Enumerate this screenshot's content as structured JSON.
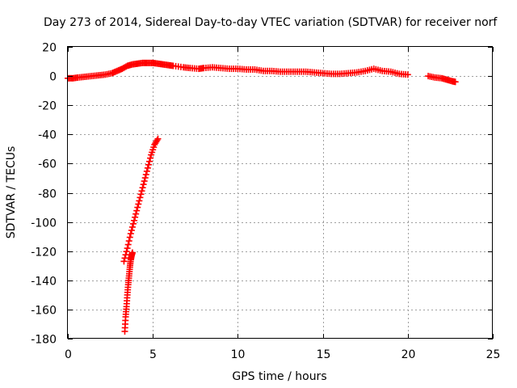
{
  "chart_data": {
    "type": "scatter",
    "title": "Day 273 of 2014, Sidereal Day-to-day VTEC variation (SDTVAR) for receiver norf",
    "xlabel": "GPS time / hours",
    "ylabel": "SDTVAR / TECUs",
    "xlim": [
      0,
      25
    ],
    "ylim": [
      -180,
      20
    ],
    "xticks": [
      "0",
      "5",
      "10",
      "15",
      "20",
      "25"
    ],
    "yticks": [
      "-180",
      "-160",
      "-140",
      "-120",
      "-100",
      "-80",
      "-60",
      "-40",
      "-20",
      "0",
      "20"
    ],
    "grid": true,
    "marker": "plus",
    "color": "#ff0000",
    "series": [
      {
        "x": [
          0.0,
          0.3,
          0.6,
          1.0,
          1.4,
          1.8,
          2.2,
          2.6,
          2.9,
          3.2,
          3.5,
          3.8,
          4.1,
          4.4,
          4.7,
          5.0,
          5.3,
          5.6,
          5.9,
          6.2,
          6.8,
          7.2,
          7.7,
          8.0,
          8.5,
          9.0,
          9.5,
          10.0,
          10.5,
          11.0,
          11.5,
          12.0,
          12.5,
          13.0,
          13.5,
          14.0,
          14.5,
          15.0,
          15.5,
          16.0,
          16.5,
          17.0,
          17.5,
          18.0,
          18.5,
          19.0,
          19.5,
          20.0,
          21.2,
          21.6,
          22.0,
          22.3,
          22.6,
          22.8
        ],
        "y": [
          -1.5,
          -1.5,
          -1,
          -0.5,
          0,
          0.5,
          1,
          2,
          3.5,
          5,
          7,
          8,
          8.5,
          9,
          9,
          9,
          8.5,
          8,
          7.5,
          7,
          6,
          5.5,
          5,
          5.5,
          6,
          5.5,
          5,
          5,
          4.5,
          4.5,
          3.5,
          3.5,
          3,
          3,
          3,
          3,
          2.5,
          2,
          1.5,
          1.5,
          2,
          2.5,
          3.5,
          5,
          3.5,
          3,
          1.5,
          1,
          0,
          -1,
          -1.5,
          -2.5,
          -3.5,
          -4
        ]
      },
      {
        "x": [
          3.3,
          3.5,
          3.7,
          3.9,
          4.1,
          4.3,
          4.5,
          4.7,
          4.9,
          5.1,
          5.3
        ],
        "y": [
          -127,
          -118,
          -108,
          -99,
          -90,
          -81,
          -72,
          -63,
          -54,
          -47,
          -43
        ]
      },
      {
        "x": [
          3.35,
          3.4,
          3.45,
          3.5,
          3.55,
          3.6,
          3.65,
          3.7,
          3.75,
          3.8
        ],
        "y": [
          -175,
          -165,
          -158,
          -150,
          -143,
          -137,
          -131,
          -126,
          -123,
          -121
        ]
      }
    ]
  }
}
